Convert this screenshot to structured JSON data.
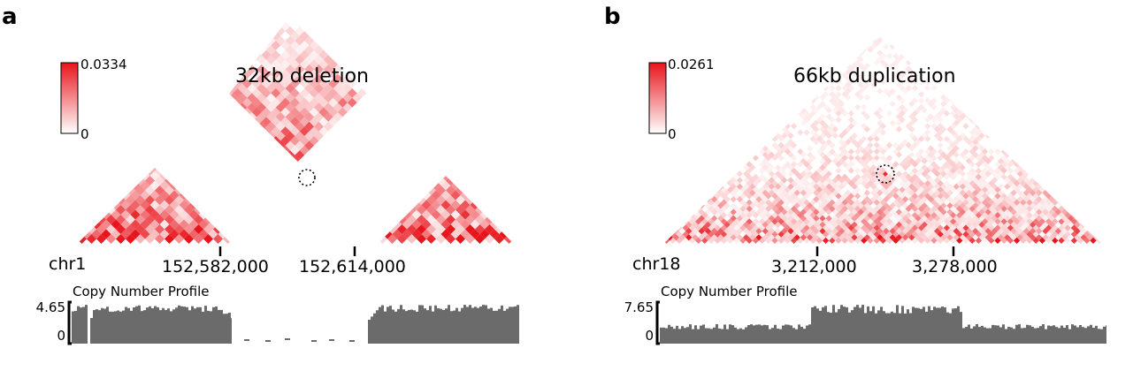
{
  "panel_a": {
    "letter": "a",
    "title": "32kb deletion",
    "colorbar": {
      "max": "0.0334",
      "min": "0"
    },
    "chromosome": "chr1",
    "ticks": [
      "152,582,000",
      "152,614,000"
    ],
    "cnp": {
      "title": "Copy Number Profile",
      "ymax": "4.65",
      "ymin": "0"
    }
  },
  "panel_b": {
    "letter": "b",
    "title": "66kb duplication",
    "colorbar": {
      "max": "0.0261",
      "min": "0"
    },
    "chromosome": "chr18",
    "ticks": [
      "3,212,000",
      "3,278,000"
    ],
    "cnp": {
      "title": "Copy Number Profile",
      "ymax": "7.65",
      "ymin": "0"
    }
  },
  "colors": {
    "heat": "#e8141b",
    "profile": "#6b6b6b",
    "circle": "#000000"
  }
}
